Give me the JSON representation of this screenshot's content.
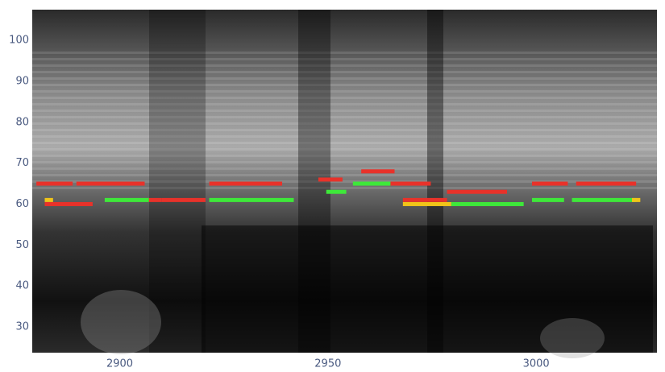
{
  "chart_data": {
    "type": "segments",
    "xlim": [
      2879,
      3029
    ],
    "ylim": [
      23.7,
      107.5
    ],
    "xticks": [
      2900,
      2950,
      3000
    ],
    "yticks": [
      30,
      40,
      50,
      60,
      70,
      80,
      90,
      100
    ],
    "grid": false,
    "series": [
      {
        "color": "#e8322a",
        "x0": [
          2880,
          2889.6,
          2882,
          2907,
          2910,
          2921.5,
          2947.7,
          2958,
          2965,
          2968,
          2978.6,
          2999,
          3009.6
        ],
        "x1": [
          2888.7,
          2906,
          2893.5,
          2910,
          2920.6,
          2939,
          2953.5,
          2966,
          2974.7,
          2978.6,
          2993,
          3007.6,
          3024
        ],
        "values": [
          65,
          65,
          60,
          61,
          61,
          65,
          66,
          68,
          65,
          61,
          63,
          65,
          65
        ]
      },
      {
        "color": "#3ee83a",
        "x0": [
          2896.4,
          2921.5,
          2949.6,
          2956,
          2979.6,
          2999,
          3008.6
        ],
        "x1": [
          2907,
          2941.8,
          2954.4,
          2965,
          2997,
          3006.7,
          3024
        ],
        "values": [
          61,
          61,
          63,
          65,
          60,
          61,
          61
        ]
      },
      {
        "color": "#f0c419",
        "x0": [
          2882,
          2968,
          3023
        ],
        "x1": [
          2884,
          2979.6,
          3025
        ],
        "values": [
          61,
          60,
          61
        ]
      }
    ]
  }
}
